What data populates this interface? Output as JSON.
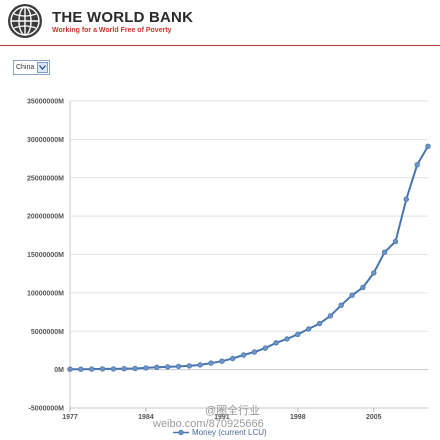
{
  "brand": {
    "title": "THE WORLD BANK",
    "tagline": "Working for a World Free of Poverty"
  },
  "country_select": {
    "value": "China",
    "icon": "chevron-down-icon"
  },
  "colors": {
    "line": "#4a76b0",
    "marker": "#6f95c6",
    "accent": "#b03a2e"
  },
  "watermark": {
    "handle": "@圈全行业",
    "url": "weibo.com/870925666"
  },
  "chart_data": {
    "type": "line",
    "title": "",
    "xlabel": "",
    "ylabel": "",
    "ylim": [
      -5000000,
      35000000
    ],
    "yticks": [
      35000000,
      30000000,
      25000000,
      20000000,
      15000000,
      10000000,
      5000000,
      0,
      -5000000
    ],
    "ytick_labels": [
      "35000000M",
      "30000000M",
      "25000000M",
      "20000000M",
      "15000000M",
      "10000000M",
      "5000000M",
      "0M",
      "-5000000M"
    ],
    "xlim": [
      1977,
      2010
    ],
    "xticks": [
      1977,
      1984,
      1991,
      1998,
      2005
    ],
    "xtick_labels": [
      "1977",
      "1984",
      "1991",
      "1998",
      "2005"
    ],
    "grid": true,
    "legend": "bottom",
    "series": [
      {
        "name": "Money (current LCU)",
        "x": [
          1977,
          1978,
          1979,
          1980,
          1981,
          1982,
          1983,
          1984,
          1985,
          1986,
          1987,
          1988,
          1989,
          1990,
          1991,
          1992,
          1993,
          1994,
          1995,
          1996,
          1997,
          1998,
          1999,
          2000,
          2001,
          2002,
          2003,
          2004,
          2005,
          2006,
          2007,
          2008,
          2009,
          2010
        ],
        "values": [
          50000,
          60000,
          70000,
          90000,
          100000,
          120000,
          150000,
          230000,
          300000,
          360000,
          420000,
          490000,
          620000,
          850000,
          1100000,
          1450000,
          1900000,
          2300000,
          2800000,
          3500000,
          4000000,
          4600000,
          5300000,
          6000000,
          7000000,
          8400000,
          9700000,
          10700000,
          12600000,
          15300000,
          16700000,
          22200000,
          26700000,
          29100000
        ]
      }
    ]
  }
}
